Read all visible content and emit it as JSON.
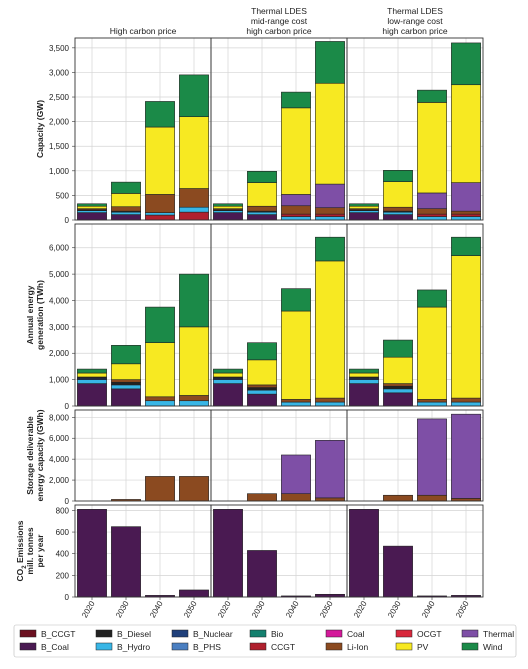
{
  "chart_data": {
    "type": "bar",
    "stacked": true,
    "categories": [
      "2020",
      "2030",
      "2040",
      "2050"
    ],
    "scenarios": [
      "High carbon price",
      "Thermal LDES\nmid-range cost\nhigh carbon price",
      "Thermal LDES\nlow-range cost\nhigh carbon price"
    ],
    "legend": {
      "placement": "bottom",
      "items": [
        {
          "name": "B_CCGT",
          "color": "#6b1020"
        },
        {
          "name": "B_Coal",
          "color": "#4a1a52"
        },
        {
          "name": "B_Diesel",
          "color": "#222222"
        },
        {
          "name": "B_Hydro",
          "color": "#38b6e6"
        },
        {
          "name": "B_Nuclear",
          "color": "#1f3f7a"
        },
        {
          "name": "B_PHS",
          "color": "#4a7fc1"
        },
        {
          "name": "Bio",
          "color": "#14806e"
        },
        {
          "name": "CCGT",
          "color": "#b0202e"
        },
        {
          "name": "Coal",
          "color": "#d4199a"
        },
        {
          "name": "Li-Ion",
          "color": "#8b4a20"
        },
        {
          "name": "OCGT",
          "color": "#d8283c"
        },
        {
          "name": "PV",
          "color": "#f7e922"
        },
        {
          "name": "Thermal",
          "color": "#7e4fa6"
        },
        {
          "name": "Wind",
          "color": "#1b8a48"
        }
      ]
    },
    "rows": [
      {
        "ylabel": "Capacity (GW)",
        "ylim": [
          0,
          3700
        ],
        "yticks": [
          0,
          500,
          1000,
          1500,
          2000,
          2500,
          3000,
          3500
        ],
        "yticklabels": [
          "0",
          "500",
          "1,000",
          "1,500",
          "2,000",
          "2,500",
          "3,000",
          "3,500"
        ],
        "panels": [
          [
            [
              {
                "s": "B_Coal",
                "v": 150
              },
              {
                "s": "B_Hydro",
                "v": 40
              },
              {
                "s": "B_Diesel",
                "v": 20
              },
              {
                "s": "Li-Ion",
                "v": 20
              },
              {
                "s": "PV",
                "v": 50
              },
              {
                "s": "Wind",
                "v": 50
              }
            ],
            [
              {
                "s": "B_Coal",
                "v": 110
              },
              {
                "s": "B_Hydro",
                "v": 50
              },
              {
                "s": "B_Diesel",
                "v": 20
              },
              {
                "s": "Li-Ion",
                "v": 90
              },
              {
                "s": "PV",
                "v": 270
              },
              {
                "s": "Wind",
                "v": 230
              }
            ],
            [
              {
                "s": "CCGT",
                "v": 100
              },
              {
                "s": "B_Hydro",
                "v": 50
              },
              {
                "s": "Li-Ion",
                "v": 370
              },
              {
                "s": "PV",
                "v": 1370
              },
              {
                "s": "Wind",
                "v": 520
              }
            ],
            [
              {
                "s": "CCGT",
                "v": 160
              },
              {
                "s": "B_Hydro",
                "v": 100
              },
              {
                "s": "Li-Ion",
                "v": 380
              },
              {
                "s": "PV",
                "v": 1460
              },
              {
                "s": "Wind",
                "v": 850
              }
            ]
          ],
          [
            [
              {
                "s": "B_Coal",
                "v": 150
              },
              {
                "s": "B_Hydro",
                "v": 40
              },
              {
                "s": "B_Diesel",
                "v": 20
              },
              {
                "s": "Li-Ion",
                "v": 20
              },
              {
                "s": "PV",
                "v": 50
              },
              {
                "s": "Wind",
                "v": 50
              }
            ],
            [
              {
                "s": "B_Coal",
                "v": 110
              },
              {
                "s": "B_Hydro",
                "v": 50
              },
              {
                "s": "B_Diesel",
                "v": 20
              },
              {
                "s": "Li-Ion",
                "v": 100
              },
              {
                "s": "PV",
                "v": 480
              },
              {
                "s": "Wind",
                "v": 230
              }
            ],
            [
              {
                "s": "B_Hydro",
                "v": 70
              },
              {
                "s": "CCGT",
                "v": 50
              },
              {
                "s": "Li-Ion",
                "v": 170
              },
              {
                "s": "Thermal",
                "v": 230
              },
              {
                "s": "PV",
                "v": 1760
              },
              {
                "s": "Wind",
                "v": 320
              }
            ],
            [
              {
                "s": "B_Hydro",
                "v": 70
              },
              {
                "s": "CCGT",
                "v": 50
              },
              {
                "s": "Li-Ion",
                "v": 130
              },
              {
                "s": "Thermal",
                "v": 480
              },
              {
                "s": "PV",
                "v": 2050
              },
              {
                "s": "Wind",
                "v": 850
              }
            ]
          ],
          [
            [
              {
                "s": "B_Coal",
                "v": 150
              },
              {
                "s": "B_Hydro",
                "v": 40
              },
              {
                "s": "B_Diesel",
                "v": 20
              },
              {
                "s": "Li-Ion",
                "v": 20
              },
              {
                "s": "PV",
                "v": 50
              },
              {
                "s": "Wind",
                "v": 50
              }
            ],
            [
              {
                "s": "B_Coal",
                "v": 110
              },
              {
                "s": "B_Hydro",
                "v": 50
              },
              {
                "s": "B_Diesel",
                "v": 20
              },
              {
                "s": "Li-Ion",
                "v": 80
              },
              {
                "s": "PV",
                "v": 520
              },
              {
                "s": "Wind",
                "v": 230
              }
            ],
            [
              {
                "s": "B_Hydro",
                "v": 70
              },
              {
                "s": "CCGT",
                "v": 50
              },
              {
                "s": "Li-Ion",
                "v": 110
              },
              {
                "s": "Thermal",
                "v": 320
              },
              {
                "s": "PV",
                "v": 1840
              },
              {
                "s": "Wind",
                "v": 250
              }
            ],
            [
              {
                "s": "B_Hydro",
                "v": 70
              },
              {
                "s": "CCGT",
                "v": 50
              },
              {
                "s": "Li-Ion",
                "v": 60
              },
              {
                "s": "Thermal",
                "v": 580
              },
              {
                "s": "PV",
                "v": 1990
              },
              {
                "s": "Wind",
                "v": 850
              }
            ]
          ]
        ]
      },
      {
        "ylabel": "Annual energy\ngeneration (TWh)",
        "ylim": [
          0,
          6900
        ],
        "yticks": [
          0,
          1000,
          2000,
          3000,
          4000,
          5000,
          6000
        ],
        "yticklabels": [
          "0",
          "1,000",
          "2,000",
          "3,000",
          "4,000",
          "5,000",
          "6,000"
        ],
        "panels": [
          [
            [
              {
                "s": "B_Coal",
                "v": 850
              },
              {
                "s": "B_Hydro",
                "v": 150
              },
              {
                "s": "B_Nuclear",
                "v": 50
              },
              {
                "s": "B_Diesel",
                "v": 50
              },
              {
                "s": "PV",
                "v": 150
              },
              {
                "s": "Wind",
                "v": 150
              }
            ],
            [
              {
                "s": "B_Coal",
                "v": 650
              },
              {
                "s": "B_Hydro",
                "v": 150
              },
              {
                "s": "B_Diesel",
                "v": 100
              },
              {
                "s": "Li-Ion",
                "v": 100
              },
              {
                "s": "PV",
                "v": 600
              },
              {
                "s": "Wind",
                "v": 700
              }
            ],
            [
              {
                "s": "B_Hydro",
                "v": 200
              },
              {
                "s": "Li-Ion",
                "v": 150
              },
              {
                "s": "PV",
                "v": 2050
              },
              {
                "s": "Wind",
                "v": 1350
              }
            ],
            [
              {
                "s": "B_Hydro",
                "v": 200
              },
              {
                "s": "Li-Ion",
                "v": 200
              },
              {
                "s": "PV",
                "v": 2600
              },
              {
                "s": "Wind",
                "v": 2000
              }
            ]
          ],
          [
            [
              {
                "s": "B_Coal",
                "v": 850
              },
              {
                "s": "B_Hydro",
                "v": 150
              },
              {
                "s": "B_Nuclear",
                "v": 50
              },
              {
                "s": "B_Diesel",
                "v": 50
              },
              {
                "s": "PV",
                "v": 150
              },
              {
                "s": "Wind",
                "v": 150
              }
            ],
            [
              {
                "s": "B_Coal",
                "v": 450
              },
              {
                "s": "B_Hydro",
                "v": 150
              },
              {
                "s": "B_Diesel",
                "v": 100
              },
              {
                "s": "Li-Ion",
                "v": 100
              },
              {
                "s": "PV",
                "v": 950
              },
              {
                "s": "Wind",
                "v": 650
              }
            ],
            [
              {
                "s": "B_Hydro",
                "v": 150
              },
              {
                "s": "Li-Ion",
                "v": 100
              },
              {
                "s": "PV",
                "v": 3350
              },
              {
                "s": "Wind",
                "v": 850
              }
            ],
            [
              {
                "s": "B_Hydro",
                "v": 150
              },
              {
                "s": "Li-Ion",
                "v": 150
              },
              {
                "s": "PV",
                "v": 5200
              },
              {
                "s": "Wind",
                "v": 900
              }
            ]
          ],
          [
            [
              {
                "s": "B_Coal",
                "v": 850
              },
              {
                "s": "B_Hydro",
                "v": 150
              },
              {
                "s": "B_Nuclear",
                "v": 50
              },
              {
                "s": "B_Diesel",
                "v": 50
              },
              {
                "s": "PV",
                "v": 150
              },
              {
                "s": "Wind",
                "v": 150
              }
            ],
            [
              {
                "s": "B_Coal",
                "v": 500
              },
              {
                "s": "B_Hydro",
                "v": 150
              },
              {
                "s": "B_Diesel",
                "v": 100
              },
              {
                "s": "Li-Ion",
                "v": 100
              },
              {
                "s": "PV",
                "v": 1000
              },
              {
                "s": "Wind",
                "v": 650
              }
            ],
            [
              {
                "s": "B_Hydro",
                "v": 150
              },
              {
                "s": "Li-Ion",
                "v": 100
              },
              {
                "s": "PV",
                "v": 3500
              },
              {
                "s": "Wind",
                "v": 650
              }
            ],
            [
              {
                "s": "B_Hydro",
                "v": 150
              },
              {
                "s": "Li-Ion",
                "v": 150
              },
              {
                "s": "PV",
                "v": 5400
              },
              {
                "s": "Wind",
                "v": 700
              }
            ]
          ]
        ]
      },
      {
        "ylabel": "Storage deliverable\nenergy capacity (GWh)",
        "ylim": [
          0,
          8700
        ],
        "yticks": [
          0,
          2000,
          4000,
          6000,
          8000
        ],
        "yticklabels": [
          "0",
          "2,000",
          "4,000",
          "6,000",
          "8,000"
        ],
        "panels": [
          [
            [],
            [
              {
                "s": "Li-Ion",
                "v": 150
              }
            ],
            [
              {
                "s": "Li-Ion",
                "v": 2350
              }
            ],
            [
              {
                "s": "Li-Ion",
                "v": 2350
              }
            ]
          ],
          [
            [],
            [
              {
                "s": "Li-Ion",
                "v": 700
              }
            ],
            [
              {
                "s": "Li-Ion",
                "v": 700
              },
              {
                "s": "Thermal",
                "v": 3700
              }
            ],
            [
              {
                "s": "Li-Ion",
                "v": 300
              },
              {
                "s": "Thermal",
                "v": 5500
              }
            ]
          ],
          [
            [],
            [
              {
                "s": "Li-Ion",
                "v": 550
              }
            ],
            [
              {
                "s": "Li-Ion",
                "v": 550
              },
              {
                "s": "Thermal",
                "v": 7300
              }
            ],
            [
              {
                "s": "Li-Ion",
                "v": 250
              },
              {
                "s": "Thermal",
                "v": 8050
              }
            ]
          ]
        ]
      },
      {
        "ylabel": "CO2 Emissions\nmill. tonnes\nper year",
        "ylim": [
          0,
          850
        ],
        "yticks": [
          0,
          200,
          400,
          600,
          800
        ],
        "yticklabels": [
          "0",
          "200",
          "400",
          "600",
          "800"
        ],
        "panels": [
          [
            [
              {
                "s": "B_Coal",
                "v": 810
              }
            ],
            [
              {
                "s": "B_Coal",
                "v": 650
              }
            ],
            [
              {
                "s": "B_Coal",
                "v": 15
              }
            ],
            [
              {
                "s": "B_Coal",
                "v": 65
              }
            ]
          ],
          [
            [
              {
                "s": "B_Coal",
                "v": 810
              }
            ],
            [
              {
                "s": "B_Coal",
                "v": 430
              }
            ],
            [
              {
                "s": "B_Coal",
                "v": 10
              }
            ],
            [
              {
                "s": "B_Coal",
                "v": 25
              }
            ]
          ],
          [
            [
              {
                "s": "B_Coal",
                "v": 810
              }
            ],
            [
              {
                "s": "B_Coal",
                "v": 470
              }
            ],
            [
              {
                "s": "B_Coal",
                "v": 10
              }
            ],
            [
              {
                "s": "B_Coal",
                "v": 15
              }
            ]
          ]
        ]
      }
    ],
    "grid": true
  }
}
